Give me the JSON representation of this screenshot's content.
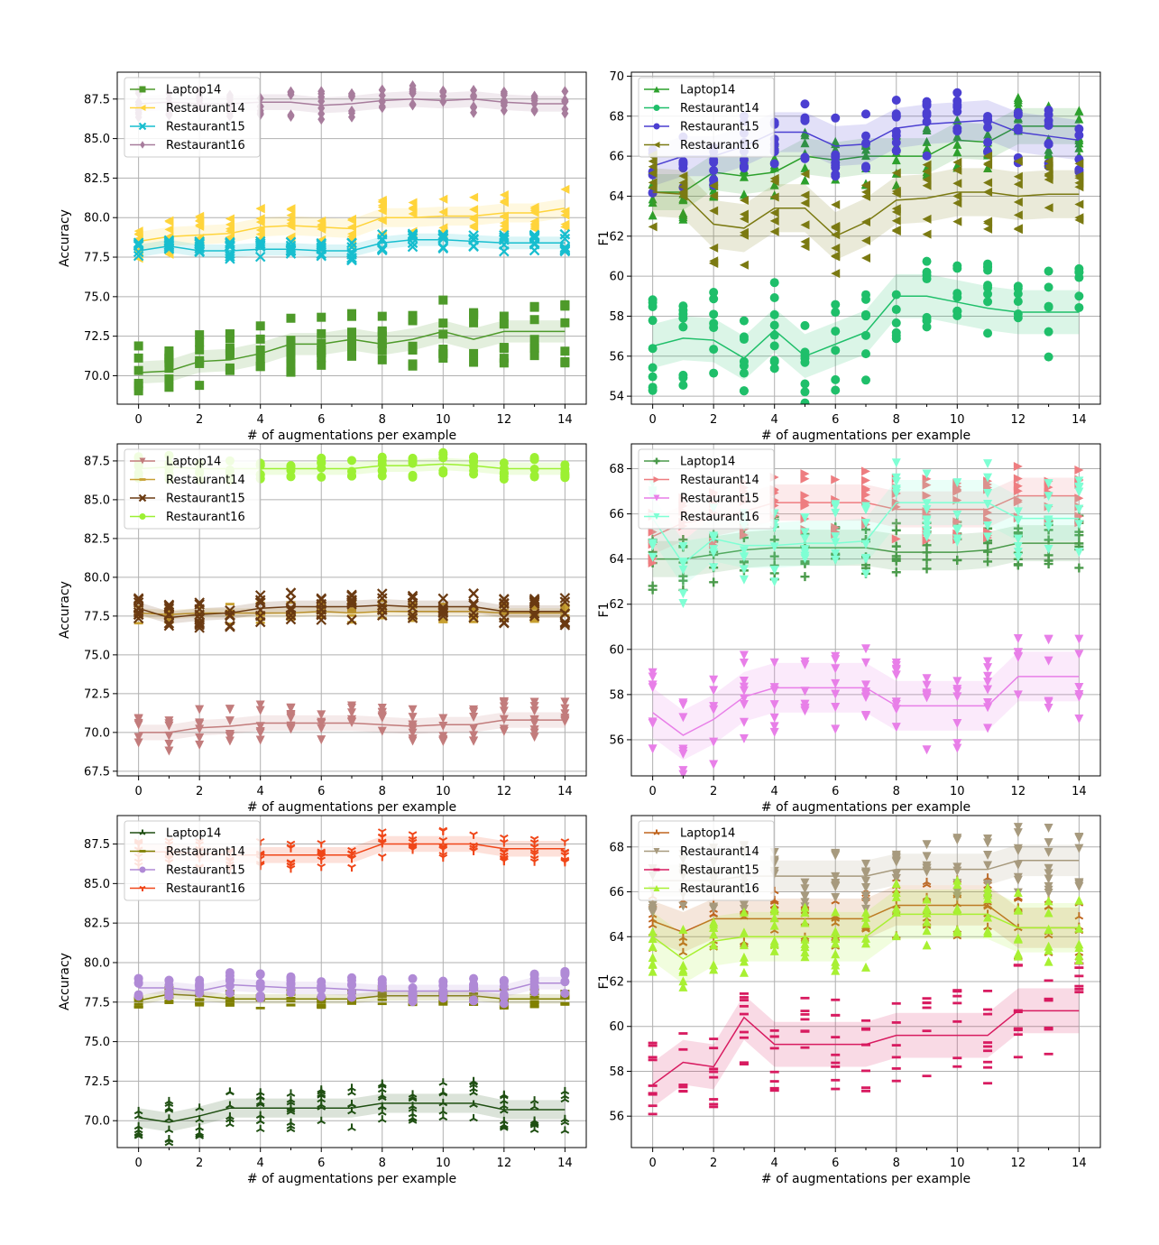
{
  "chart_data": [
    {
      "type": "line",
      "panel": "top-left",
      "xlabel": "# of augmentations per example",
      "ylabel": "Accuracy",
      "xlim": [
        -0.7,
        14.7
      ],
      "ylim": [
        68.2,
        89.2
      ],
      "xticks": [
        "0",
        "2",
        "4",
        "6",
        "8",
        "10",
        "12",
        "14"
      ],
      "yticks": [
        "70.0",
        "72.5",
        "75.0",
        "77.5",
        "80.0",
        "82.5",
        "85.0",
        "87.5"
      ],
      "grid": true,
      "legend": "top-left",
      "x": [
        0,
        1,
        2,
        3,
        4,
        5,
        6,
        7,
        8,
        9,
        10,
        11,
        12,
        13,
        14
      ],
      "series": [
        {
          "name": "Laptop14",
          "color": "#4e9a2a",
          "marker": "square",
          "values": [
            70.2,
            70.3,
            70.9,
            71.0,
            71.4,
            72.0,
            72.0,
            72.3,
            72.0,
            72.3,
            72.8,
            72.3,
            72.8,
            72.8,
            72.8
          ],
          "band": 0.7,
          "spread": 2.0
        },
        {
          "name": "Restaurant14",
          "color": "#ffd43b",
          "marker": "triangle-left",
          "values": [
            78.5,
            78.8,
            78.9,
            79.0,
            79.4,
            79.5,
            79.4,
            79.3,
            80.0,
            80.0,
            80.1,
            80.1,
            80.3,
            80.3,
            80.6
          ],
          "band": 0.6,
          "spread": 1.2
        },
        {
          "name": "Restaurant15",
          "color": "#17becf",
          "marker": "x",
          "values": [
            77.9,
            78.2,
            77.9,
            77.9,
            78.0,
            78.0,
            77.9,
            77.9,
            78.4,
            78.6,
            78.6,
            78.5,
            78.4,
            78.4,
            78.4
          ],
          "band": 0.4,
          "spread": 0.6
        },
        {
          "name": "Restaurant16",
          "color": "#a77c9c",
          "marker": "diamond",
          "values": [
            87.2,
            87.3,
            87.2,
            87.2,
            87.3,
            87.3,
            87.1,
            87.2,
            87.4,
            87.5,
            87.4,
            87.5,
            87.3,
            87.2,
            87.2
          ],
          "band": 0.5,
          "spread": 0.9
        }
      ]
    },
    {
      "type": "line",
      "panel": "top-right",
      "xlabel": "# of augmentations per example",
      "ylabel": "F1",
      "xlim": [
        -0.7,
        14.7
      ],
      "ylim": [
        53.6,
        70.2
      ],
      "xticks": [
        "0",
        "2",
        "4",
        "6",
        "8",
        "10",
        "12",
        "14"
      ],
      "yticks": [
        "54",
        "56",
        "58",
        "60",
        "62",
        "64",
        "66",
        "68",
        "70"
      ],
      "grid": true,
      "legend": "top-left",
      "x": [
        0,
        1,
        2,
        3,
        4,
        5,
        6,
        7,
        8,
        9,
        10,
        11,
        12,
        13,
        14
      ],
      "series": [
        {
          "name": "Laptop14",
          "color": "#2ca02c",
          "marker": "triangle-up",
          "values": [
            64.2,
            64.2,
            65.2,
            65.0,
            65.2,
            66.0,
            65.8,
            66.0,
            66.0,
            66.0,
            66.8,
            66.7,
            67.5,
            67.5,
            67.5
          ],
          "band": 0.9,
          "spread": 1.5
        },
        {
          "name": "Restaurant14",
          "color": "#1fbf6a",
          "marker": "circle",
          "values": [
            56.5,
            56.9,
            56.8,
            55.9,
            57.3,
            56.0,
            56.6,
            57.2,
            59.0,
            59.0,
            58.7,
            58.4,
            58.2,
            58.2,
            58.2
          ],
          "band": 1.1,
          "spread": 2.4
        },
        {
          "name": "Restaurant15",
          "color": "#4b3fd1",
          "marker": "circle",
          "values": [
            65.5,
            66.0,
            66.0,
            66.5,
            67.2,
            67.2,
            66.5,
            66.6,
            67.4,
            67.6,
            67.7,
            67.8,
            67.2,
            67.0,
            66.8
          ],
          "band": 1.0,
          "spread": 1.6
        },
        {
          "name": "Restaurant16",
          "color": "#7b7a12",
          "marker": "triangle-left",
          "values": [
            64.2,
            64.1,
            62.6,
            62.4,
            63.4,
            63.4,
            62.0,
            62.7,
            63.8,
            63.9,
            64.2,
            64.2,
            64.0,
            64.1,
            64.1
          ],
          "band": 1.2,
          "spread": 2.0
        }
      ]
    },
    {
      "type": "line",
      "panel": "middle-left",
      "xlabel": "# of augmentations per example",
      "ylabel": "Accuracy",
      "xlim": [
        -0.7,
        14.7
      ],
      "ylim": [
        67.2,
        88.6
      ],
      "xticks": [
        "0",
        "2",
        "4",
        "6",
        "8",
        "10",
        "12",
        "14"
      ],
      "yticks": [
        "67.5",
        "70.0",
        "72.5",
        "75.0",
        "77.5",
        "80.0",
        "82.5",
        "85.0",
        "87.5"
      ],
      "grid": true,
      "legend": "top-left",
      "x": [
        0,
        1,
        2,
        3,
        4,
        5,
        6,
        7,
        8,
        9,
        10,
        11,
        12,
        13,
        14
      ],
      "series": [
        {
          "name": "Laptop14",
          "color": "#c27c7c",
          "marker": "triangle-down",
          "values": [
            70.0,
            70.0,
            70.3,
            70.4,
            70.6,
            70.6,
            70.6,
            70.6,
            70.5,
            70.4,
            70.5,
            70.5,
            70.8,
            70.8,
            70.8
          ],
          "band": 0.5,
          "spread": 1.2
        },
        {
          "name": "Restaurant14",
          "color": "#c8a032",
          "marker": "line",
          "values": [
            77.7,
            77.6,
            77.7,
            77.7,
            77.7,
            77.7,
            77.8,
            77.7,
            77.8,
            77.8,
            77.8,
            77.8,
            77.7,
            77.7,
            77.7
          ],
          "band": 0.3,
          "spread": 0.7
        },
        {
          "name": "Restaurant15",
          "color": "#6a3a12",
          "marker": "x",
          "values": [
            78.0,
            77.4,
            77.6,
            77.7,
            78.0,
            78.1,
            78.1,
            78.1,
            78.2,
            78.1,
            78.1,
            78.1,
            77.8,
            77.8,
            77.8
          ],
          "band": 0.4,
          "spread": 0.9
        },
        {
          "name": "Restaurant16",
          "color": "#9cf032",
          "marker": "circle",
          "values": [
            87.0,
            87.1,
            87.0,
            87.0,
            87.0,
            87.0,
            87.0,
            87.0,
            87.2,
            87.2,
            87.3,
            87.2,
            87.0,
            87.0,
            87.0
          ],
          "band": 0.4,
          "spread": 0.8
        }
      ]
    },
    {
      "type": "line",
      "panel": "middle-right",
      "xlabel": "# of augmentations per example",
      "ylabel": "F1",
      "xlim": [
        -0.7,
        14.7
      ],
      "ylim": [
        54.4,
        69.1
      ],
      "xticks": [
        "0",
        "2",
        "4",
        "6",
        "8",
        "10",
        "12",
        "14"
      ],
      "yticks": [
        "56",
        "58",
        "60",
        "62",
        "64",
        "66",
        "68"
      ],
      "grid": true,
      "legend": "top-left",
      "x": [
        0,
        1,
        2,
        3,
        4,
        5,
        6,
        7,
        8,
        9,
        10,
        11,
        12,
        13,
        14
      ],
      "series": [
        {
          "name": "Laptop14",
          "color": "#4a9a4a",
          "marker": "plus",
          "values": [
            64.0,
            64.0,
            64.2,
            64.4,
            64.5,
            64.5,
            64.5,
            64.5,
            64.3,
            64.3,
            64.3,
            64.4,
            64.7,
            64.7,
            64.7
          ],
          "band": 0.8,
          "spread": 1.4
        },
        {
          "name": "Restaurant14",
          "color": "#ee7d80",
          "marker": "triangle-right",
          "values": [
            65.0,
            65.6,
            65.8,
            66.1,
            66.5,
            66.5,
            66.5,
            66.5,
            66.2,
            66.2,
            66.2,
            66.2,
            66.8,
            66.8,
            66.8
          ],
          "band": 0.8,
          "spread": 1.4
        },
        {
          "name": "Restaurant15",
          "color": "#e87fe8",
          "marker": "triangle-down",
          "values": [
            57.2,
            56.2,
            56.9,
            57.9,
            58.3,
            58.3,
            58.3,
            58.3,
            57.5,
            57.5,
            57.5,
            57.5,
            58.8,
            58.8,
            58.8
          ],
          "band": 1.1,
          "spread": 2.0
        },
        {
          "name": "Restaurant16",
          "color": "#7fffd4",
          "marker": "triangle-down",
          "values": [
            65.8,
            63.8,
            64.9,
            64.6,
            64.6,
            64.7,
            64.7,
            64.8,
            66.5,
            66.5,
            66.5,
            66.5,
            65.8,
            65.8,
            65.8
          ],
          "band": 1.0,
          "spread": 1.8
        }
      ]
    },
    {
      "type": "line",
      "panel": "bottom-left",
      "xlabel": "# of augmentations per example",
      "ylabel": "Accuracy",
      "xlim": [
        -0.7,
        14.7
      ],
      "ylim": [
        68.3,
        89.3
      ],
      "xticks": [
        "0",
        "2",
        "4",
        "6",
        "8",
        "10",
        "12",
        "14"
      ],
      "yticks": [
        "70.0",
        "72.5",
        "75.0",
        "77.5",
        "80.0",
        "82.5",
        "85.0",
        "87.5"
      ],
      "grid": true,
      "legend": "top-left",
      "x": [
        0,
        1,
        2,
        3,
        4,
        5,
        6,
        7,
        8,
        9,
        10,
        11,
        12,
        13,
        14
      ],
      "series": [
        {
          "name": "Laptop14",
          "color": "#1f4f12",
          "marker": "tri-up",
          "values": [
            70.2,
            69.9,
            70.3,
            70.8,
            70.8,
            70.8,
            70.8,
            70.8,
            71.1,
            71.1,
            71.1,
            71.1,
            70.7,
            70.7,
            70.7
          ],
          "band": 0.6,
          "spread": 1.4
        },
        {
          "name": "Restaurant14",
          "color": "#808000",
          "marker": "line",
          "values": [
            77.6,
            78.0,
            77.9,
            77.7,
            77.7,
            77.7,
            77.7,
            77.7,
            77.9,
            77.9,
            77.9,
            77.9,
            77.7,
            77.7,
            77.7
          ],
          "band": 0.3,
          "spread": 0.6
        },
        {
          "name": "Restaurant15",
          "color": "#b08ad6",
          "marker": "circle",
          "values": [
            78.4,
            78.4,
            78.2,
            78.6,
            78.5,
            78.4,
            78.4,
            78.3,
            78.2,
            78.2,
            78.2,
            78.2,
            78.2,
            78.7,
            78.7
          ],
          "band": 0.4,
          "spread": 0.8
        },
        {
          "name": "Restaurant16",
          "color": "#f04618",
          "marker": "tri-down",
          "values": [
            87.0,
            87.0,
            86.9,
            86.8,
            86.8,
            86.8,
            86.8,
            86.8,
            87.5,
            87.5,
            87.5,
            87.5,
            87.2,
            87.2,
            87.2
          ],
          "band": 0.5,
          "spread": 0.9
        }
      ]
    },
    {
      "type": "line",
      "panel": "bottom-right",
      "xlabel": "# of augmentations per example",
      "ylabel": "F1",
      "xlim": [
        -0.7,
        14.7
      ],
      "ylim": [
        54.6,
        69.4
      ],
      "xticks": [
        "0",
        "2",
        "4",
        "6",
        "8",
        "10",
        "12",
        "14"
      ],
      "yticks": [
        "56",
        "58",
        "60",
        "62",
        "64",
        "66",
        "68"
      ],
      "grid": true,
      "legend": "top-left",
      "x": [
        0,
        1,
        2,
        3,
        4,
        5,
        6,
        7,
        8,
        9,
        10,
        11,
        12,
        13,
        14
      ],
      "series": [
        {
          "name": "Laptop14",
          "color": "#c0651f",
          "marker": "tri-up",
          "values": [
            64.7,
            64.2,
            64.8,
            64.8,
            64.8,
            64.8,
            64.8,
            64.8,
            65.4,
            65.4,
            65.4,
            65.4,
            64.4,
            64.4,
            64.4
          ],
          "band": 0.9,
          "spread": 1.4
        },
        {
          "name": "Restaurant14",
          "color": "#a79a7e",
          "marker": "triangle-down",
          "values": [
            66.5,
            66.5,
            66.5,
            66.7,
            66.7,
            66.7,
            66.7,
            66.7,
            67.0,
            67.0,
            67.0,
            67.0,
            67.4,
            67.4,
            67.4
          ],
          "band": 0.7,
          "spread": 1.5
        },
        {
          "name": "Restaurant15",
          "color": "#d81b60",
          "marker": "hline",
          "values": [
            57.4,
            58.4,
            58.2,
            60.4,
            59.2,
            59.2,
            59.2,
            59.2,
            59.6,
            59.6,
            59.6,
            59.6,
            60.7,
            60.7,
            60.7
          ],
          "band": 1.0,
          "spread": 2.2
        },
        {
          "name": "Restaurant16",
          "color": "#a8f032",
          "marker": "triangle-up",
          "values": [
            64.0,
            63.0,
            63.8,
            64.0,
            64.0,
            64.0,
            64.0,
            64.0,
            65.0,
            65.0,
            65.0,
            65.0,
            64.4,
            64.4,
            64.4
          ],
          "band": 1.1,
          "spread": 1.6
        }
      ]
    }
  ]
}
